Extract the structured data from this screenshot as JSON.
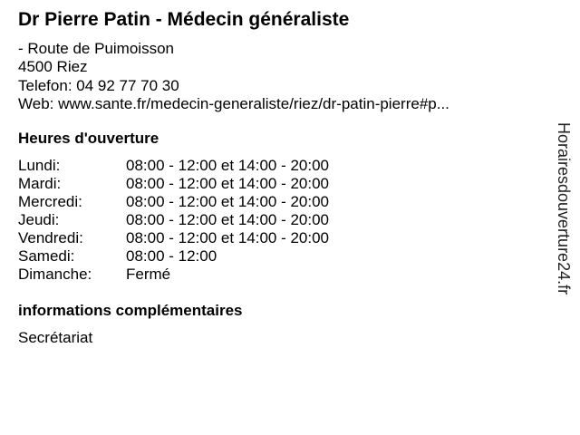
{
  "title": "Dr Pierre Patin - Médecin généraliste",
  "address": {
    "street": "- Route de Puimoisson",
    "city": "4500 Riez",
    "phone": "Telefon: 04 92 77 70 30",
    "web": "Web: www.sante.fr/medecin-generaliste/riez/dr-patin-pierre#p..."
  },
  "hours": {
    "heading": "Heures d'ouverture",
    "rows": [
      {
        "day": "Lundi:",
        "time": "08:00 - 12:00 et 14:00 - 20:00"
      },
      {
        "day": "Mardi:",
        "time": "08:00 - 12:00 et 14:00 - 20:00"
      },
      {
        "day": "Mercredi:",
        "time": "08:00 - 12:00 et 14:00 - 20:00"
      },
      {
        "day": "Jeudi:",
        "time": "08:00 - 12:00 et 14:00 - 20:00"
      },
      {
        "day": "Vendredi:",
        "time": "08:00 - 12:00 et 14:00 - 20:00"
      },
      {
        "day": "Samedi:",
        "time": "08:00 - 12:00"
      },
      {
        "day": "Dimanche:",
        "time": "Fermé"
      }
    ]
  },
  "info": {
    "heading": "informations complémentaires",
    "text": "Secrétariat"
  },
  "watermark": "Horairesdouverture24.fr"
}
